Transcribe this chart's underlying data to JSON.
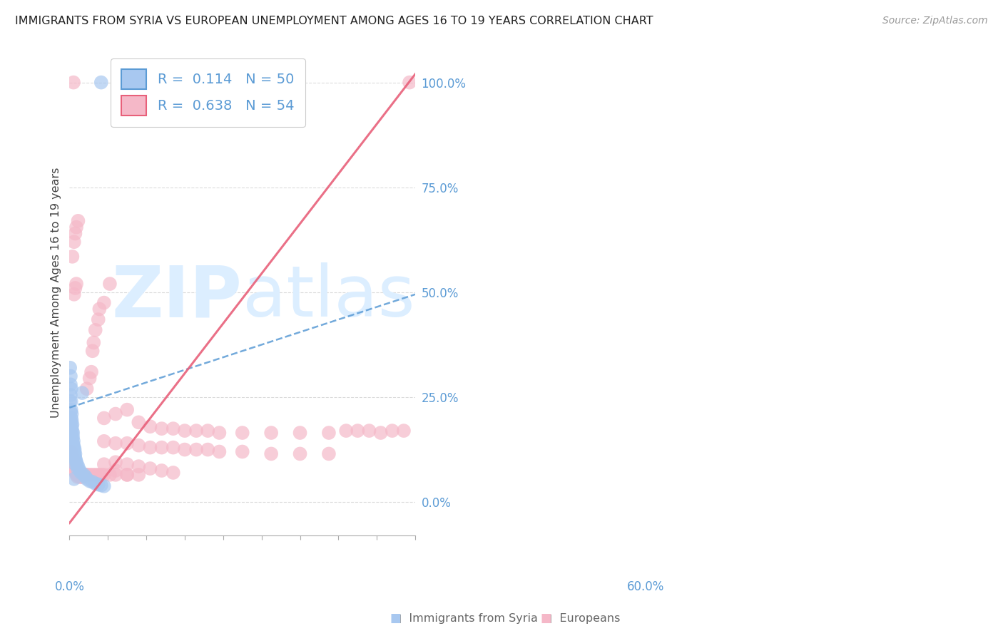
{
  "title": "IMMIGRANTS FROM SYRIA VS EUROPEAN UNEMPLOYMENT AMONG AGES 16 TO 19 YEARS CORRELATION CHART",
  "source": "Source: ZipAtlas.com",
  "ylabel_label": "Unemployment Among Ages 16 to 19 years",
  "legend_bottom_1": "Immigrants from Syria",
  "legend_bottom_2": "Europeans",
  "R_blue": 0.114,
  "N_blue": 50,
  "R_pink": 0.638,
  "N_pink": 54,
  "blue_color": "#a8c8f0",
  "pink_color": "#f5b8c8",
  "blue_edge_color": "#5a9fd4",
  "pink_edge_color": "#e87090",
  "blue_line_color": "#5b9bd5",
  "pink_line_color": "#e8607a",
  "watermark_color": "#dceeff",
  "xmin": 0.0,
  "xmax": 0.6,
  "ymin": -0.08,
  "ymax": 1.08,
  "yticks": [
    0.0,
    0.25,
    0.5,
    0.75,
    1.0
  ],
  "ytick_labels": [
    "0.0%",
    "25.0%",
    "50.0%",
    "75.0%",
    "100.0%"
  ],
  "blue_line_x": [
    0.0,
    0.6
  ],
  "blue_line_y": [
    0.225,
    0.495
  ],
  "pink_line_x": [
    0.0,
    0.6
  ],
  "pink_line_y": [
    -0.05,
    1.02
  ],
  "blue_scatter": [
    [
      0.001,
      0.32
    ],
    [
      0.002,
      0.3
    ],
    [
      0.002,
      0.28
    ],
    [
      0.003,
      0.27
    ],
    [
      0.002,
      0.255
    ],
    [
      0.003,
      0.24
    ],
    [
      0.001,
      0.24
    ],
    [
      0.003,
      0.22
    ],
    [
      0.002,
      0.215
    ],
    [
      0.004,
      0.21
    ],
    [
      0.003,
      0.2
    ],
    [
      0.004,
      0.195
    ],
    [
      0.002,
      0.19
    ],
    [
      0.005,
      0.185
    ],
    [
      0.004,
      0.18
    ],
    [
      0.003,
      0.175
    ],
    [
      0.005,
      0.17
    ],
    [
      0.006,
      0.165
    ],
    [
      0.004,
      0.16
    ],
    [
      0.006,
      0.155
    ],
    [
      0.005,
      0.15
    ],
    [
      0.007,
      0.145
    ],
    [
      0.006,
      0.14
    ],
    [
      0.007,
      0.135
    ],
    [
      0.008,
      0.13
    ],
    [
      0.005,
      0.13
    ],
    [
      0.009,
      0.125
    ],
    [
      0.008,
      0.12
    ],
    [
      0.01,
      0.115
    ],
    [
      0.009,
      0.11
    ],
    [
      0.01,
      0.105
    ],
    [
      0.011,
      0.1
    ],
    [
      0.012,
      0.095
    ],
    [
      0.013,
      0.09
    ],
    [
      0.01,
      0.09
    ],
    [
      0.015,
      0.085
    ],
    [
      0.014,
      0.08
    ],
    [
      0.018,
      0.075
    ],
    [
      0.02,
      0.07
    ],
    [
      0.025,
      0.065
    ],
    [
      0.028,
      0.06
    ],
    [
      0.03,
      0.055
    ],
    [
      0.035,
      0.05
    ],
    [
      0.04,
      0.048
    ],
    [
      0.045,
      0.044
    ],
    [
      0.05,
      0.042
    ],
    [
      0.055,
      0.04
    ],
    [
      0.06,
      0.038
    ],
    [
      0.022,
      0.26
    ],
    [
      0.008,
      0.055
    ]
  ],
  "pink_scatter": [
    [
      0.001,
      0.12
    ],
    [
      0.002,
      0.11
    ],
    [
      0.003,
      0.105
    ],
    [
      0.002,
      0.1
    ],
    [
      0.003,
      0.095
    ],
    [
      0.004,
      0.12
    ],
    [
      0.005,
      0.115
    ],
    [
      0.004,
      0.11
    ],
    [
      0.006,
      0.105
    ],
    [
      0.005,
      0.1
    ],
    [
      0.007,
      0.1
    ],
    [
      0.006,
      0.095
    ],
    [
      0.008,
      0.095
    ],
    [
      0.007,
      0.09
    ],
    [
      0.009,
      0.09
    ],
    [
      0.008,
      0.085
    ],
    [
      0.01,
      0.085
    ],
    [
      0.009,
      0.08
    ],
    [
      0.011,
      0.08
    ],
    [
      0.01,
      0.075
    ],
    [
      0.012,
      0.075
    ],
    [
      0.011,
      0.07
    ],
    [
      0.013,
      0.07
    ],
    [
      0.012,
      0.065
    ],
    [
      0.015,
      0.065
    ],
    [
      0.014,
      0.06
    ],
    [
      0.016,
      0.065
    ],
    [
      0.018,
      0.06
    ],
    [
      0.02,
      0.06
    ],
    [
      0.022,
      0.06
    ],
    [
      0.025,
      0.065
    ],
    [
      0.028,
      0.065
    ],
    [
      0.03,
      0.065
    ],
    [
      0.035,
      0.065
    ],
    [
      0.04,
      0.065
    ],
    [
      0.045,
      0.065
    ],
    [
      0.05,
      0.065
    ],
    [
      0.055,
      0.065
    ],
    [
      0.06,
      0.065
    ],
    [
      0.07,
      0.065
    ],
    [
      0.08,
      0.065
    ],
    [
      0.1,
      0.065
    ],
    [
      0.12,
      0.065
    ],
    [
      0.03,
      0.27
    ],
    [
      0.035,
      0.295
    ],
    [
      0.038,
      0.31
    ],
    [
      0.04,
      0.36
    ],
    [
      0.042,
      0.38
    ],
    [
      0.045,
      0.41
    ],
    [
      0.05,
      0.435
    ],
    [
      0.052,
      0.46
    ],
    [
      0.06,
      0.475
    ],
    [
      0.07,
      0.52
    ]
  ],
  "pink_outlier_points": [
    [
      0.007,
      1.0
    ],
    [
      0.295,
      1.0
    ],
    [
      0.59,
      1.0
    ]
  ],
  "blue_outlier_points": [
    [
      0.055,
      1.0
    ]
  ],
  "pink_scatter_spread": [
    [
      0.005,
      0.585
    ],
    [
      0.008,
      0.62
    ],
    [
      0.01,
      0.64
    ],
    [
      0.012,
      0.655
    ],
    [
      0.015,
      0.67
    ],
    [
      0.008,
      0.495
    ],
    [
      0.01,
      0.51
    ],
    [
      0.012,
      0.52
    ],
    [
      0.06,
      0.2
    ],
    [
      0.08,
      0.21
    ],
    [
      0.1,
      0.22
    ],
    [
      0.12,
      0.19
    ],
    [
      0.14,
      0.18
    ],
    [
      0.16,
      0.175
    ],
    [
      0.18,
      0.175
    ],
    [
      0.2,
      0.17
    ],
    [
      0.22,
      0.17
    ],
    [
      0.24,
      0.17
    ],
    [
      0.26,
      0.165
    ],
    [
      0.3,
      0.165
    ],
    [
      0.35,
      0.165
    ],
    [
      0.4,
      0.165
    ],
    [
      0.45,
      0.165
    ],
    [
      0.48,
      0.17
    ],
    [
      0.5,
      0.17
    ],
    [
      0.52,
      0.17
    ],
    [
      0.54,
      0.165
    ],
    [
      0.56,
      0.17
    ],
    [
      0.58,
      0.17
    ],
    [
      0.06,
      0.145
    ],
    [
      0.08,
      0.14
    ],
    [
      0.1,
      0.14
    ],
    [
      0.12,
      0.135
    ],
    [
      0.14,
      0.13
    ],
    [
      0.16,
      0.13
    ],
    [
      0.18,
      0.13
    ],
    [
      0.2,
      0.125
    ],
    [
      0.22,
      0.125
    ],
    [
      0.24,
      0.125
    ],
    [
      0.26,
      0.12
    ],
    [
      0.3,
      0.12
    ],
    [
      0.35,
      0.115
    ],
    [
      0.4,
      0.115
    ],
    [
      0.45,
      0.115
    ],
    [
      0.08,
      0.095
    ],
    [
      0.1,
      0.09
    ],
    [
      0.12,
      0.085
    ],
    [
      0.14,
      0.08
    ],
    [
      0.16,
      0.075
    ],
    [
      0.18,
      0.07
    ],
    [
      0.06,
      0.09
    ],
    [
      0.08,
      0.075
    ],
    [
      0.1,
      0.065
    ]
  ]
}
